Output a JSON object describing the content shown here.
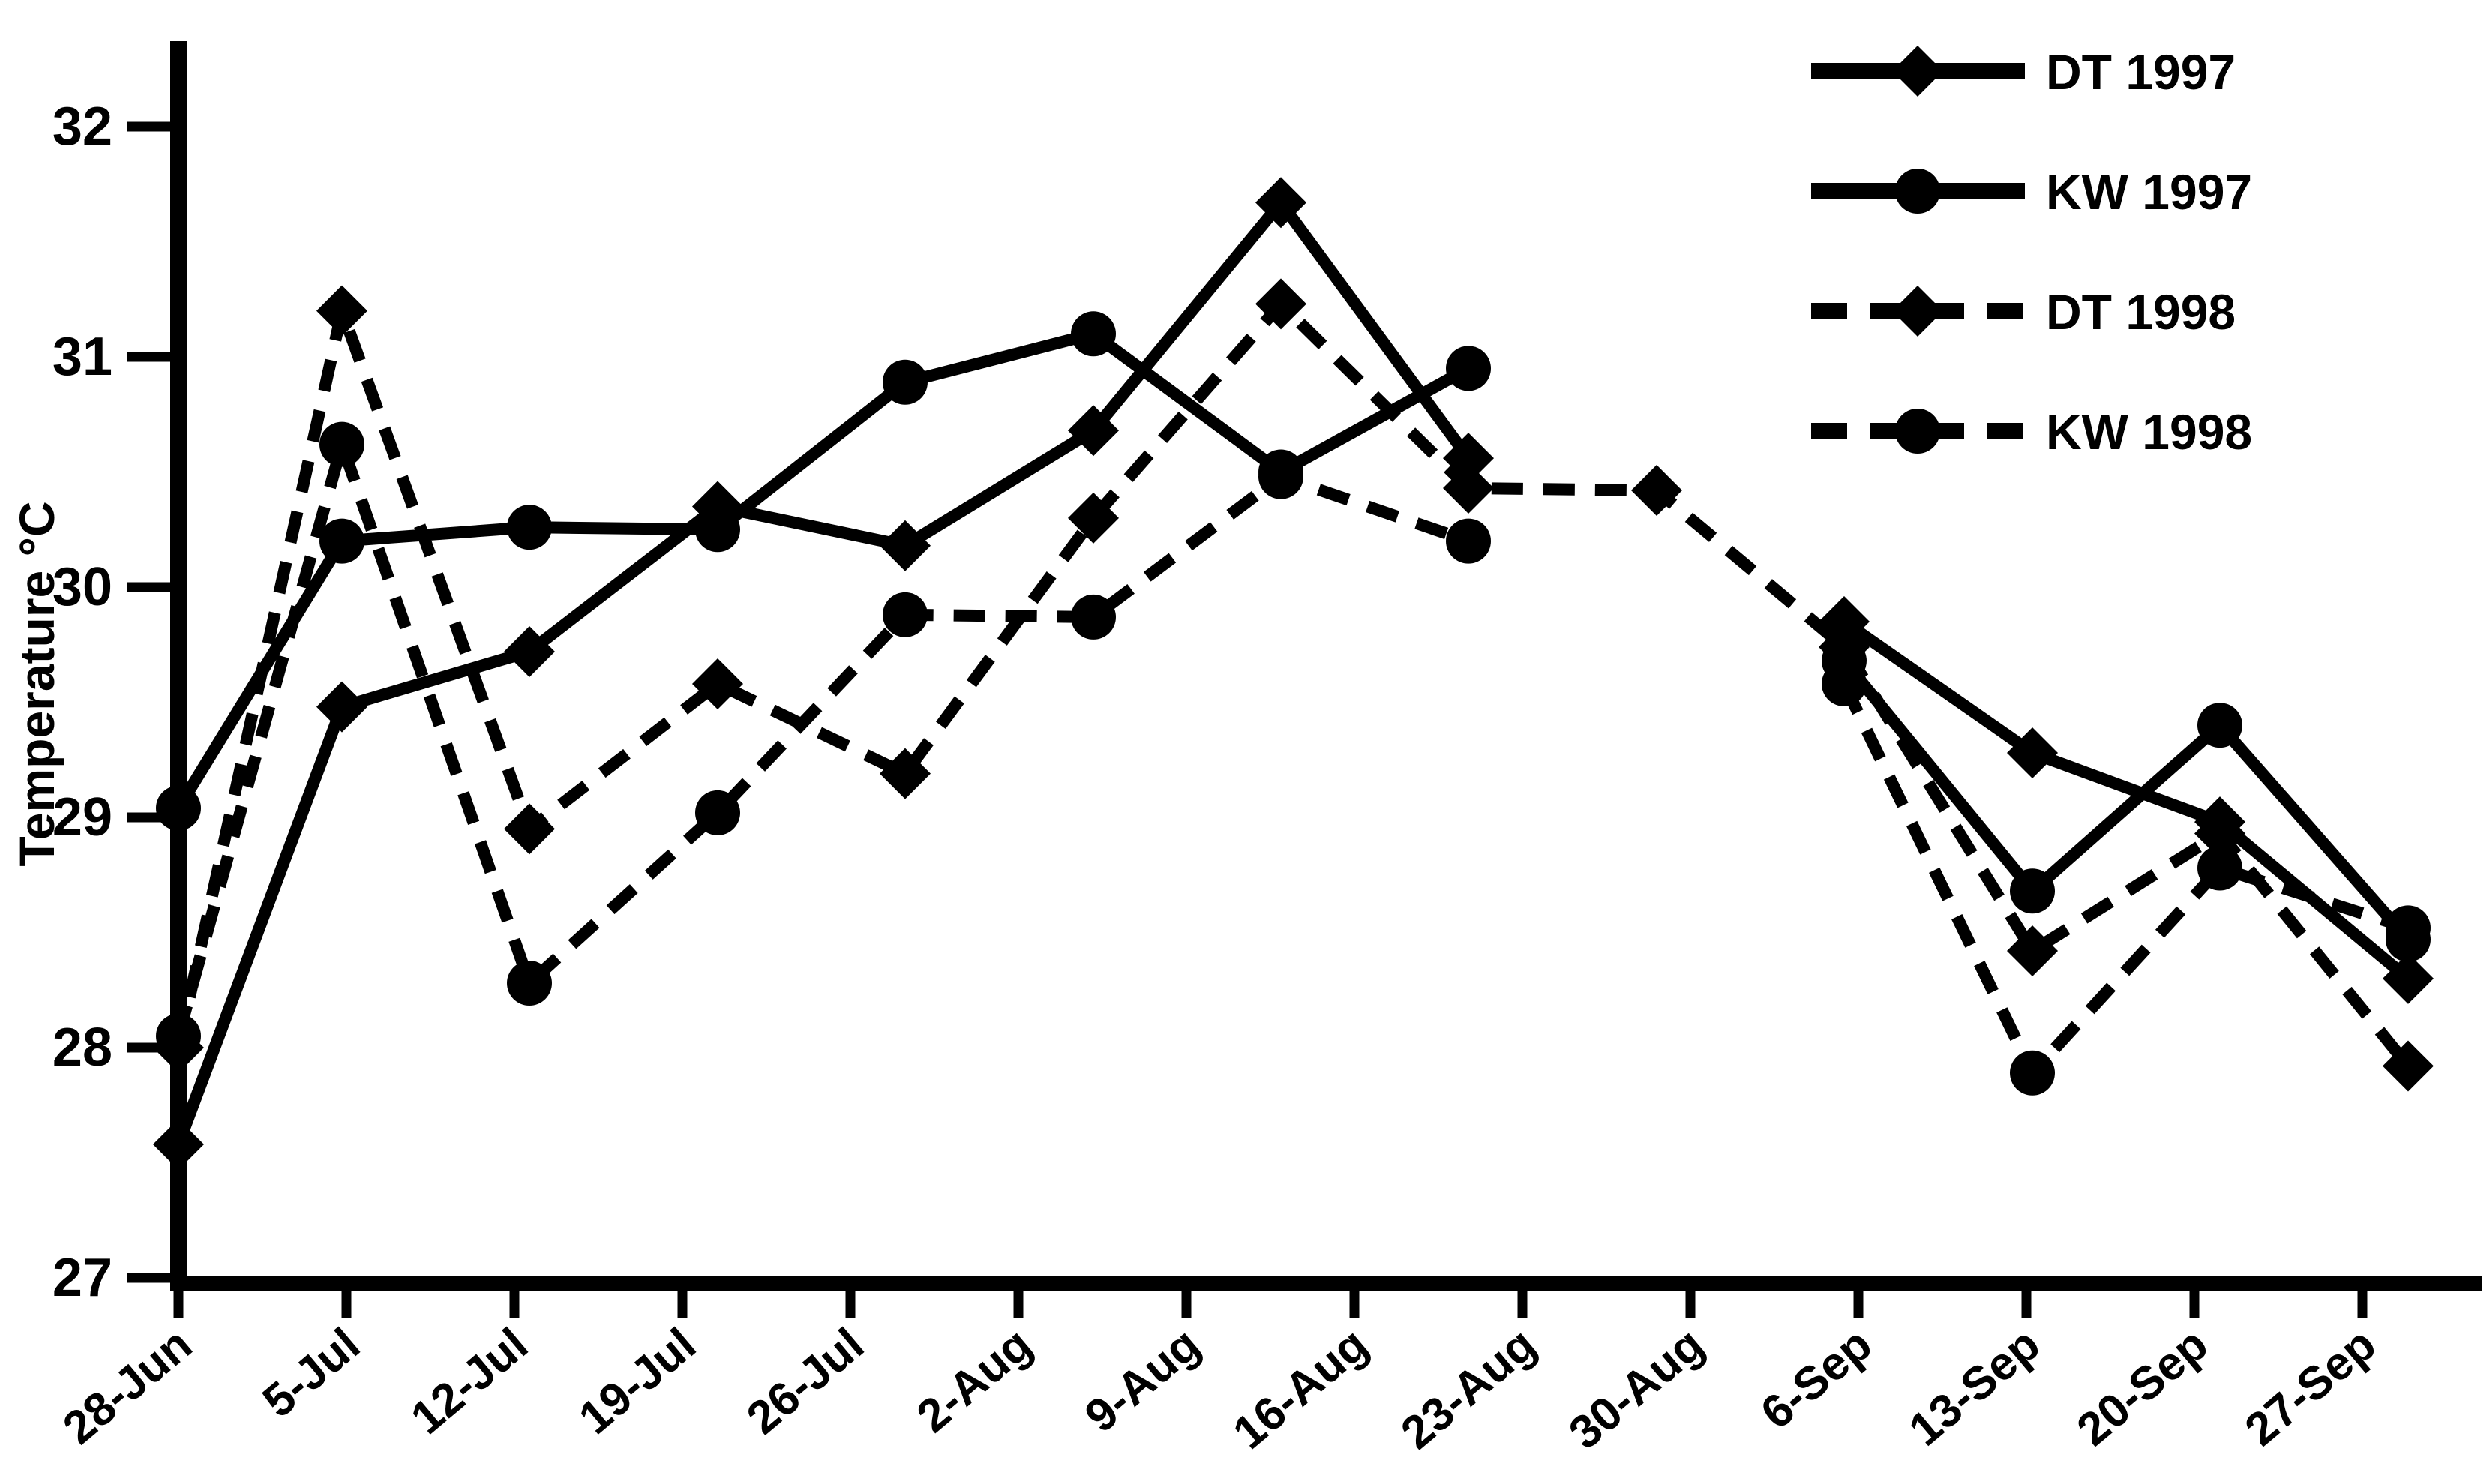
{
  "page": {
    "background_color": "#ffffff",
    "foreground_color": "#000000"
  },
  "chart_data": {
    "type": "line",
    "title": "",
    "xlabel": "",
    "ylabel": "Temperature °C",
    "ylim": [
      27,
      32
    ],
    "yticks": [
      27,
      28,
      29,
      30,
      31,
      32
    ],
    "grid": false,
    "legend_position": "top-right",
    "x_axis_tick_labels": [
      "28-Jun",
      "5-Jul",
      "12-Jul",
      "19-Jul",
      "26-Jul",
      "2-Aug",
      "9-Aug",
      "16-Aug",
      "23-Aug",
      "30-Aug",
      "6-Sep",
      "13-Sep",
      "20-Sep",
      "27-Sep"
    ],
    "x": [
      "28-Jun",
      "5-Jul",
      "12-Jul",
      "19-Jul",
      "26-Jul",
      "2-Aug",
      "9-Aug",
      "16-Aug",
      "23-Aug",
      "30-Aug",
      "6-Sep",
      "13-Sep",
      "20-Sep"
    ],
    "series": [
      {
        "name": "DT 1997",
        "line_style": "solid",
        "marker": "diamond",
        "values": [
          27.58,
          29.48,
          29.72,
          30.35,
          30.18,
          30.68,
          31.67,
          30.56,
          null,
          29.85,
          29.28,
          28.98,
          28.3
        ]
      },
      {
        "name": "KW 1997",
        "line_style": "solid",
        "marker": "circle",
        "values": [
          29.04,
          30.2,
          30.26,
          30.25,
          30.89,
          31.1,
          30.5,
          30.95,
          null,
          29.68,
          28.68,
          29.4,
          28.47
        ]
      },
      {
        "name": "DT 1998",
        "line_style": "dashed",
        "marker": "diamond",
        "values": [
          28.0,
          31.2,
          28.95,
          29.58,
          29.19,
          30.3,
          31.23,
          30.43,
          30.42,
          29.74,
          28.42,
          28.93,
          27.92
        ]
      },
      {
        "name": "KW 1998",
        "line_style": "dashed",
        "marker": "circle",
        "values": [
          28.05,
          30.62,
          28.28,
          29.02,
          29.88,
          29.87,
          30.48,
          30.2,
          null,
          29.58,
          27.89,
          28.78,
          28.52
        ]
      }
    ],
    "legend": [
      {
        "label": "DT 1997",
        "line_style": "solid",
        "marker": "diamond"
      },
      {
        "label": "KW 1997",
        "line_style": "solid",
        "marker": "circle"
      },
      {
        "label": "DT 1998",
        "line_style": "dashed",
        "marker": "diamond"
      },
      {
        "label": "KW 1998",
        "line_style": "dashed",
        "marker": "circle"
      }
    ]
  }
}
